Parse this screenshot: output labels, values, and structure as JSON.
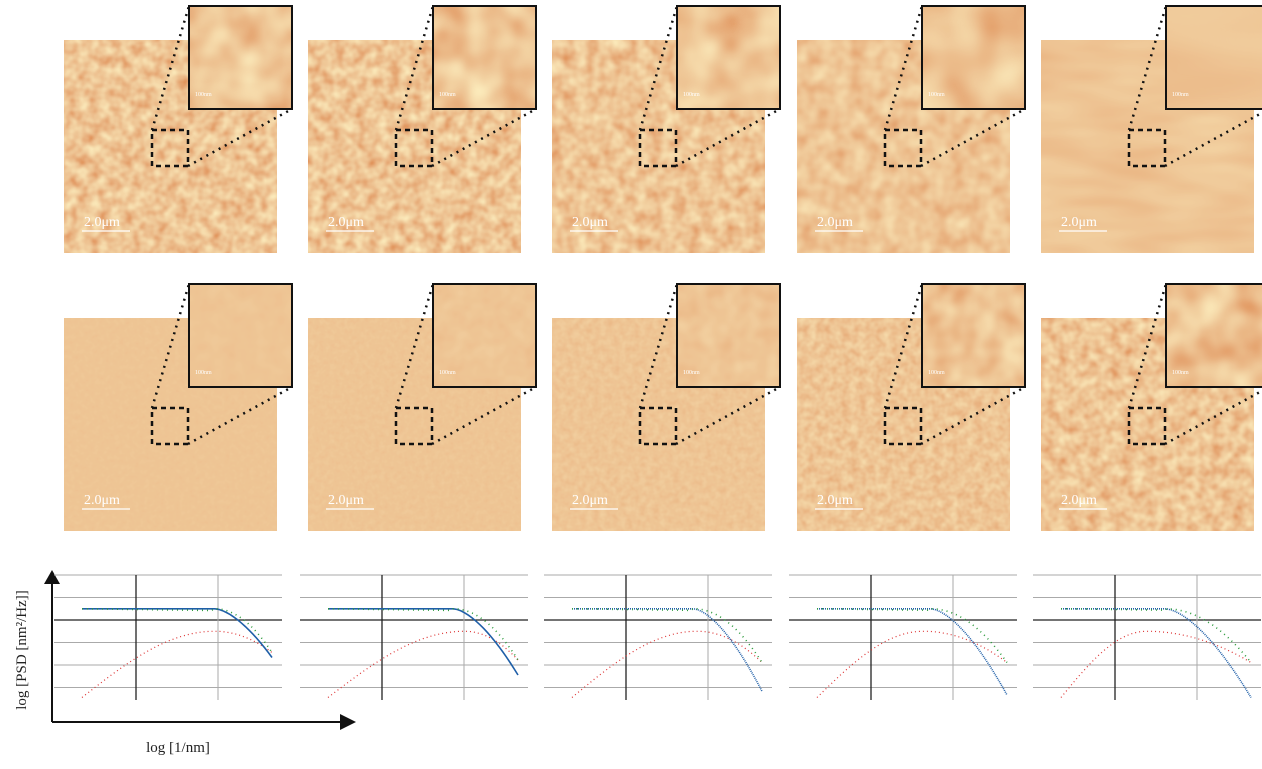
{
  "figure": {
    "rows": [
      {
        "panels": [
          {
            "scale_bar": "2.0μm",
            "inset_scale": "100nm"
          },
          {
            "scale_bar": "2.0μm",
            "inset_scale": "100nm"
          },
          {
            "scale_bar": "2.0μm",
            "inset_scale": "100nm"
          },
          {
            "scale_bar": "2.0μm",
            "inset_scale": "100nm"
          },
          {
            "scale_bar": "2.0μm",
            "inset_scale": "100nm"
          }
        ]
      },
      {
        "panels": [
          {
            "scale_bar": "2.0μm",
            "inset_scale": "100nm"
          },
          {
            "scale_bar": "2.0μm",
            "inset_scale": "100nm"
          },
          {
            "scale_bar": "2.0μm",
            "inset_scale": "100nm"
          },
          {
            "scale_bar": "2.0μm",
            "inset_scale": "100nm"
          },
          {
            "scale_bar": "2.0μm",
            "inset_scale": "100nm"
          }
        ]
      }
    ],
    "y_axis_label": "log [PSD [nm²/Hz]]",
    "x_axis_label": "log [1/nm]"
  }
}
